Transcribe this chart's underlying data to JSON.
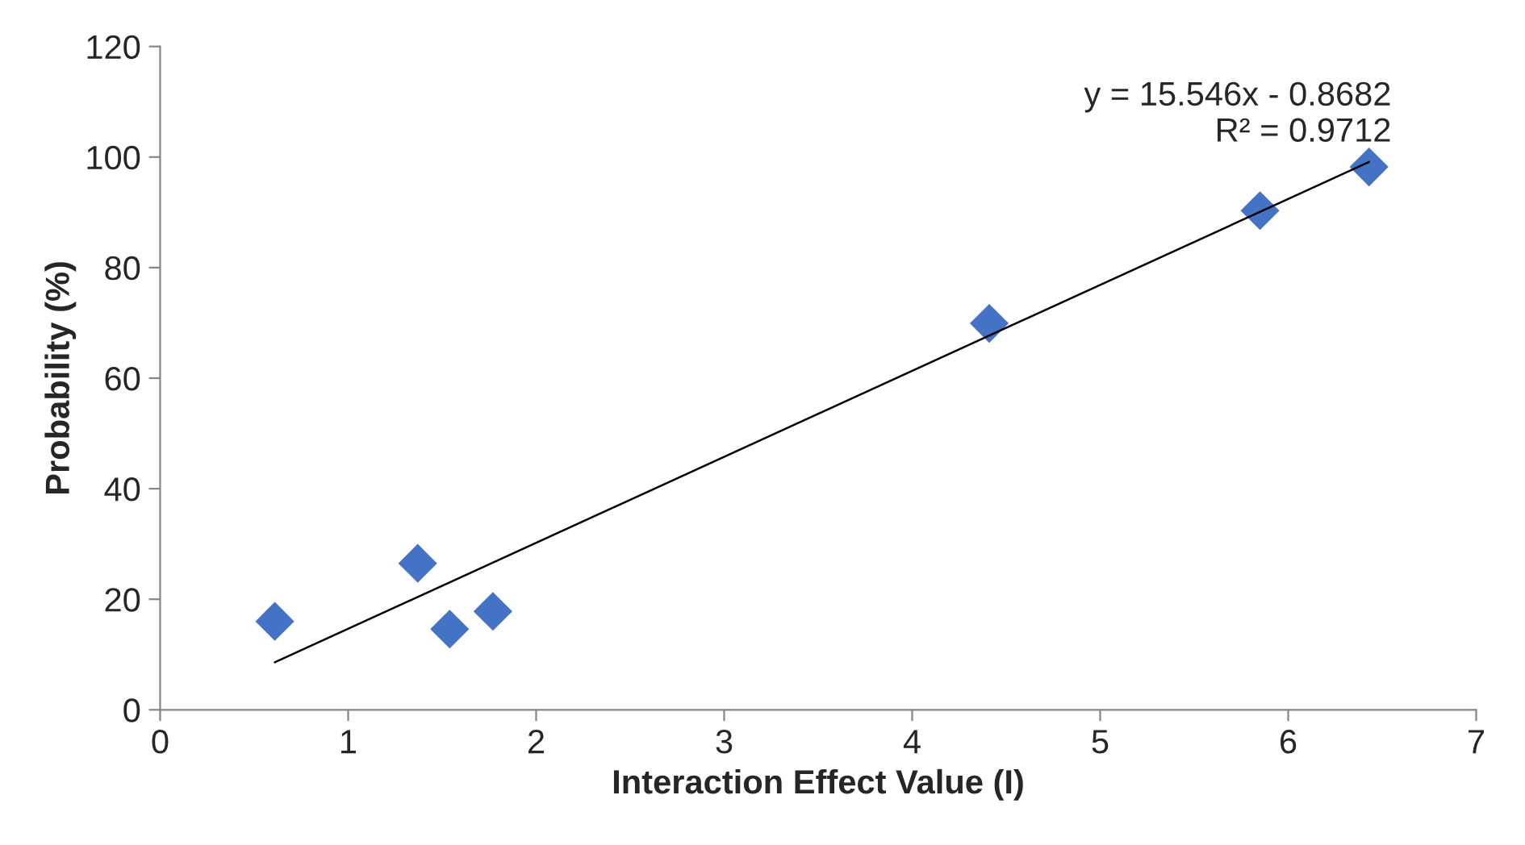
{
  "chart_data": {
    "type": "scatter",
    "xlabel": "Interaction Effect Value (I)",
    "ylabel": "Probability (%)",
    "xlim": [
      0,
      7
    ],
    "xticks": [
      0,
      1,
      2,
      3,
      4,
      5,
      6,
      7
    ],
    "ylim": [
      0,
      120
    ],
    "yticks": [
      0,
      20,
      40,
      60,
      80,
      100,
      120
    ],
    "grid": false,
    "legend": false,
    "marker": "diamond",
    "series": [
      {
        "color": "#4472c4",
        "x": [
          0.61,
          1.37,
          1.54,
          1.77,
          4.41,
          5.85,
          6.43
        ],
        "values": [
          16,
          26.5,
          14.6,
          17.8,
          69.9,
          90.3,
          98.2
        ]
      },
      {
        "type": "line",
        "color": "#000000",
        "line_style": "solid",
        "marker": "none",
        "x": [
          0.61,
          6.43
        ],
        "values": [
          8.6,
          99.1
        ]
      }
    ],
    "annotations": [
      {
        "text": "y = 15.546x - 0.8682\nR² = 0.9712",
        "x": 6.43,
        "y": 99.1
      }
    ]
  }
}
